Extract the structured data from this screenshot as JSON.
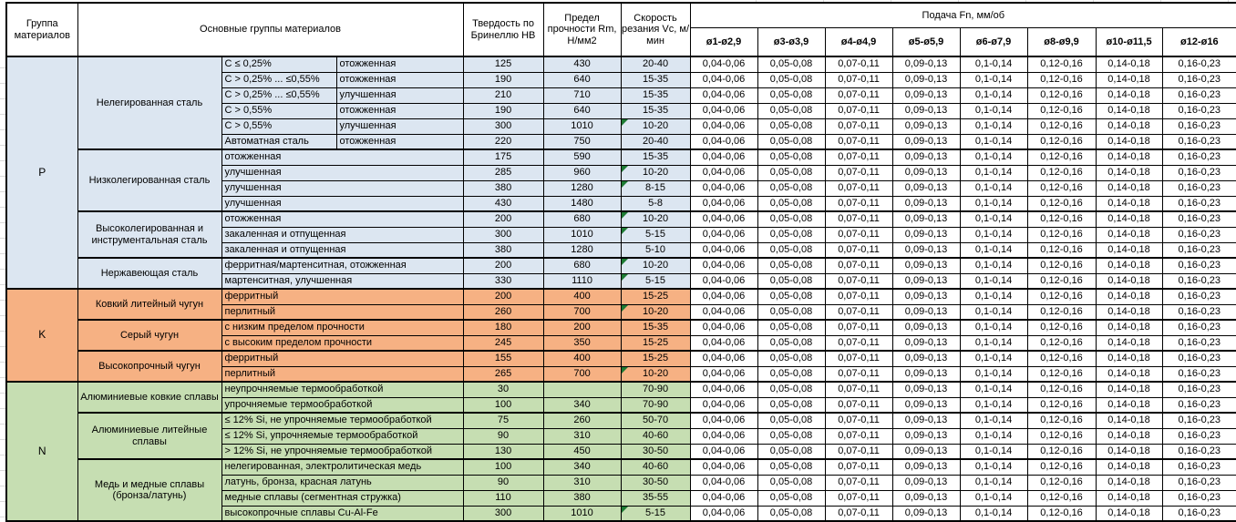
{
  "table": {
    "headers": {
      "group": "Группа материалов",
      "material_groups": "Основные группы материалов",
      "hardness": "Твердость по Бринеллю НВ",
      "strength": "Предел прочности Rm, Н/мм2",
      "speed": "Скорость резания Vc, м/мин",
      "feed": "Подача Fn, мм/об",
      "diameters": [
        "ø1-ø2,9",
        "ø3-ø3,9",
        "ø4-ø4,9",
        "ø5-ø5,9",
        "ø6-ø7,9",
        "ø8-ø9,9",
        "ø10-ø11,5",
        "ø12-ø16"
      ]
    },
    "feed_values": [
      "0,04-0,06",
      "0,05-0,08",
      "0,07-0,11",
      "0,09-0,13",
      "0,1-0,14",
      "0,12-0,16",
      "0,14-0,18",
      "0,16-0,23"
    ],
    "colors": {
      "P": "#DCE6F1",
      "K": "#F6B183",
      "N": "#C6DEB2",
      "flag": "#1E7B34",
      "border": "#000000"
    },
    "groups": [
      {
        "letter": "P",
        "subgroups": [
          {
            "name": "Нелегированная сталь",
            "rows": [
              {
                "cols": [
                  "C ≤ 0,25%",
                  "отожженная"
                ],
                "hb": "125",
                "rm": "430",
                "vc": "20-40",
                "flag": false
              },
              {
                "cols": [
                  "C > 0,25% ... ≤0,55%",
                  "отожженная"
                ],
                "hb": "190",
                "rm": "640",
                "vc": "15-35",
                "flag": false
              },
              {
                "cols": [
                  "C > 0,25% ... ≤0,55%",
                  "улучшенная"
                ],
                "hb": "210",
                "rm": "710",
                "vc": "15-35",
                "flag": false
              },
              {
                "cols": [
                  "C > 0,55%",
                  "отожженная"
                ],
                "hb": "190",
                "rm": "640",
                "vc": "15-35",
                "flag": false
              },
              {
                "cols": [
                  "C > 0,55%",
                  "улучшенная"
                ],
                "hb": "300",
                "rm": "1010",
                "vc": "10-20",
                "flag": true
              },
              {
                "cols": [
                  "Автоматная сталь",
                  "отожженная"
                ],
                "hb": "220",
                "rm": "750",
                "vc": "20-40",
                "flag": false
              }
            ]
          },
          {
            "name": "Низколегированная сталь",
            "rows": [
              {
                "cols": [
                  "отожженная"
                ],
                "hb": "175",
                "rm": "590",
                "vc": "15-35",
                "flag": false
              },
              {
                "cols": [
                  "улучшенная"
                ],
                "hb": "285",
                "rm": "960",
                "vc": "10-20",
                "flag": true
              },
              {
                "cols": [
                  "улучшенная"
                ],
                "hb": "380",
                "rm": "1280",
                "vc": "8-15",
                "flag": true
              },
              {
                "cols": [
                  "улучшенная"
                ],
                "hb": "430",
                "rm": "1480",
                "vc": "5-8",
                "flag": false
              }
            ]
          },
          {
            "name": "Высоколегированная и инструментальная сталь",
            "rows": [
              {
                "cols": [
                  "отожженная"
                ],
                "hb": "200",
                "rm": "680",
                "vc": "10-20",
                "flag": true
              },
              {
                "cols": [
                  "закаленная и отпущенная"
                ],
                "hb": "300",
                "rm": "1010",
                "vc": "5-15",
                "flag": true
              },
              {
                "cols": [
                  "закаленная и отпущенная"
                ],
                "hb": "380",
                "rm": "1280",
                "vc": "5-10",
                "flag": false
              }
            ]
          },
          {
            "name": "Нержавеющая сталь",
            "rows": [
              {
                "cols": [
                  "ферритная/мартенситная, отожженная"
                ],
                "hb": "200",
                "rm": "680",
                "vc": "10-20",
                "flag": true
              },
              {
                "cols": [
                  "мартенситная, улучшенная"
                ],
                "hb": "330",
                "rm": "1110",
                "vc": "5-15",
                "flag": true
              }
            ]
          }
        ]
      },
      {
        "letter": "K",
        "subgroups": [
          {
            "name": "Ковкий литейный чугун",
            "rows": [
              {
                "cols": [
                  "ферритный"
                ],
                "hb": "200",
                "rm": "400",
                "vc": "15-25",
                "flag": false
              },
              {
                "cols": [
                  "перлитный"
                ],
                "hb": "260",
                "rm": "700",
                "vc": "10-20",
                "flag": true
              }
            ]
          },
          {
            "name": "Серый чугун",
            "rows": [
              {
                "cols": [
                  "с низким пределом прочности"
                ],
                "hb": "180",
                "rm": "200",
                "vc": "15-35",
                "flag": false
              },
              {
                "cols": [
                  "с высоким пределом прочности"
                ],
                "hb": "245",
                "rm": "350",
                "vc": "15-25",
                "flag": false
              }
            ]
          },
          {
            "name": "Высокопрочный чугун",
            "rows": [
              {
                "cols": [
                  "ферритный"
                ],
                "hb": "155",
                "rm": "400",
                "vc": "15-25",
                "flag": false
              },
              {
                "cols": [
                  "перлитный"
                ],
                "hb": "265",
                "rm": "700",
                "vc": "10-20",
                "flag": true
              }
            ]
          }
        ]
      },
      {
        "letter": "N",
        "subgroups": [
          {
            "name": "Алюминиевые ковкие сплавы",
            "rows": [
              {
                "cols": [
                  "неупрочняемые термообработкой"
                ],
                "hb": "30",
                "rm": "",
                "vc": "70-90",
                "flag": false
              },
              {
                "cols": [
                  "упрочняемые термообработкой"
                ],
                "hb": "100",
                "rm": "340",
                "vc": "70-90",
                "flag": false
              }
            ]
          },
          {
            "name": "Алюминиевые литейные сплавы",
            "rows": [
              {
                "cols": [
                  "≤ 12% Si, не упрочняемые термообработкой"
                ],
                "hb": "75",
                "rm": "260",
                "vc": "50-70",
                "flag": false
              },
              {
                "cols": [
                  "≤ 12% Si, упрочняемые термообработкой"
                ],
                "hb": "90",
                "rm": "310",
                "vc": "40-60",
                "flag": false
              },
              {
                "cols": [
                  "> 12% Si, не упрочняемые термообработкой"
                ],
                "hb": "130",
                "rm": "450",
                "vc": "30-50",
                "flag": false
              }
            ]
          },
          {
            "name": "Медь и медные сплавы (бронза/латунь)",
            "rows": [
              {
                "cols": [
                  "нелегированная, электролитическая медь"
                ],
                "hb": "100",
                "rm": "340",
                "vc": "40-60",
                "flag": false
              },
              {
                "cols": [
                  "латунь, бронза, красная латунь"
                ],
                "hb": "90",
                "rm": "310",
                "vc": "30-50",
                "flag": false
              },
              {
                "cols": [
                  "медные сплавы (сегментная стружка)"
                ],
                "hb": "110",
                "rm": "380",
                "vc": "35-55",
                "flag": false
              },
              {
                "cols": [
                  "высокопрочные сплавы Cu-Al-Fe"
                ],
                "hb": "300",
                "rm": "1010",
                "vc": "5-15",
                "flag": true
              }
            ]
          }
        ]
      }
    ]
  }
}
